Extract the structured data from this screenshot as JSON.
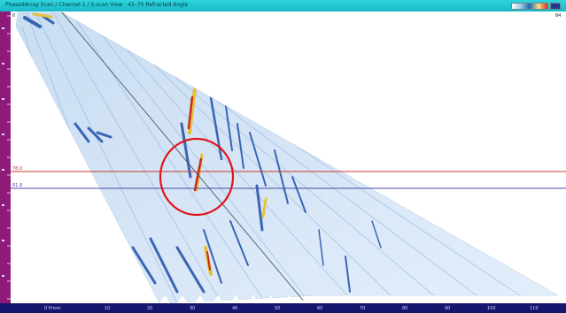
{
  "window": {
    "title": "PhasedArray Scan / Channel 1 / S-scan View · 45–70 Refracted Angle",
    "palette_icon": "color-palette-icon"
  },
  "cursors": {
    "reference_label": "78.0",
    "measure_label": "81.8"
  },
  "top_left_label": "0",
  "top_right_label": "84",
  "bottom_ruler": {
    "start_label": "0 Prism",
    "tick_labels": [
      "10",
      "20",
      "30",
      "40",
      "50",
      "60",
      "70",
      "80",
      "90",
      "100",
      "110"
    ]
  },
  "colors": {
    "title_bar": "#1fc3d0",
    "left_ruler": "#8f1b79",
    "bottom_ruler": "#16166e",
    "reference_line": "#c0392b",
    "measure_line": "#4a4aa8",
    "highlight_circle": "#e3121a"
  },
  "annotation": {
    "highlight": "red-circle-indication"
  }
}
